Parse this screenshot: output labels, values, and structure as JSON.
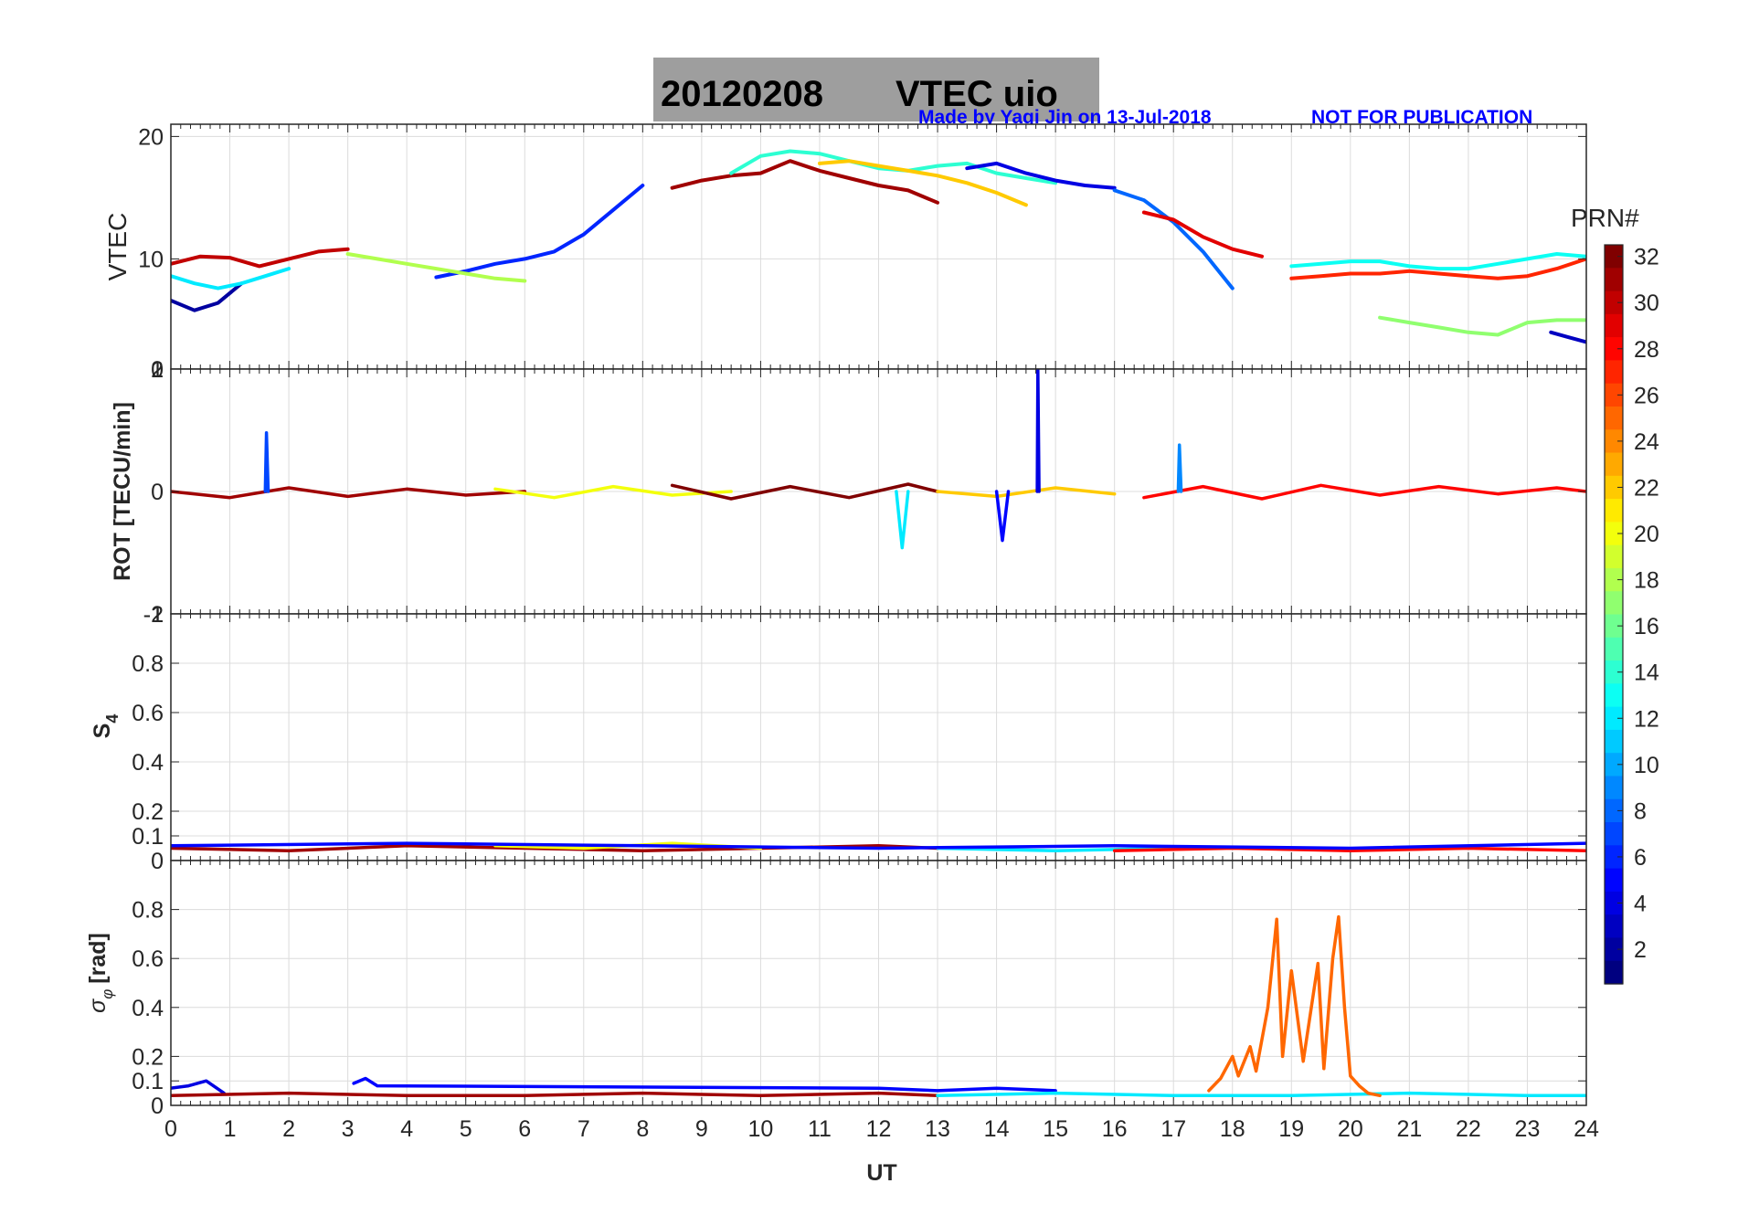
{
  "figure": {
    "title_date": "20120208",
    "title_label": "VTEC  uio",
    "credit": "Made by Yaqi Jin on 13-Jul-2018",
    "notice": "NOT FOR PUBLICATION",
    "colors": {
      "title_box": "#9e9e9e",
      "credit": "#0000ff",
      "axis": "#262626",
      "grid": "#dcdcdc",
      "sigma_highlight": "#ff4000"
    }
  },
  "colorbar": {
    "label": "PRN#",
    "min": 1,
    "max": 32,
    "ticks": [
      2,
      4,
      6,
      8,
      10,
      12,
      14,
      16,
      18,
      20,
      22,
      24,
      26,
      28,
      30,
      32
    ],
    "colormap": "jet",
    "levels": 32
  },
  "chart_data": [
    {
      "type": "line",
      "panel": "vtec",
      "ylabel": "VTEC",
      "xlim": [
        0,
        24
      ],
      "ylim": [
        1,
        21
      ],
      "yticks": [
        10,
        20
      ],
      "ytick_labels": [
        "10",
        "20"
      ],
      "extra_tick_label": "0",
      "xlabel": "",
      "series": [
        {
          "prn": 2,
          "name": "PRN 2",
          "x": [
            0.0,
            0.4,
            0.8,
            1.2
          ],
          "y": [
            6.6,
            5.8,
            6.4,
            8.0
          ]
        },
        {
          "prn": 6,
          "name": "PRN 6",
          "x": [
            4.5,
            5.0,
            5.5,
            6.0,
            6.5,
            7.0,
            7.5,
            8.0
          ],
          "y": [
            8.5,
            9.0,
            9.6,
            10.0,
            10.6,
            12.0,
            14.0,
            16.0
          ]
        },
        {
          "prn": 30,
          "name": "PRN 30",
          "x": [
            0.0,
            0.5,
            1.0,
            1.5,
            2.0,
            2.5,
            3.0
          ],
          "y": [
            9.6,
            10.2,
            10.1,
            9.4,
            10.0,
            10.6,
            10.8
          ]
        },
        {
          "prn": 18,
          "name": "PRN 18",
          "x": [
            3.0,
            3.5,
            4.0,
            4.5,
            5.0,
            5.5,
            6.0
          ],
          "y": [
            10.4,
            10.0,
            9.6,
            9.2,
            8.8,
            8.4,
            8.2
          ]
        },
        {
          "prn": 12,
          "name": "PRN 12",
          "x": [
            0.0,
            0.4,
            0.8,
            1.2,
            1.6,
            2.0
          ],
          "y": [
            8.6,
            8.0,
            7.6,
            8.0,
            8.6,
            9.2
          ]
        },
        {
          "prn": 31,
          "name": "PRN 31",
          "x": [
            8.5,
            9.0,
            9.5,
            10.0,
            10.5,
            11.0,
            11.5,
            12.0,
            12.5,
            13.0
          ],
          "y": [
            15.8,
            16.4,
            16.8,
            17.0,
            18.0,
            17.2,
            16.6,
            16.0,
            15.6,
            14.6
          ]
        },
        {
          "prn": 14,
          "name": "PRN 14",
          "x": [
            9.5,
            10.0,
            10.5,
            11.0,
            11.5,
            12.0,
            12.5,
            13.0,
            13.5,
            14.0,
            14.5,
            15.0
          ],
          "y": [
            17.0,
            18.4,
            18.8,
            18.6,
            18.0,
            17.4,
            17.2,
            17.6,
            17.8,
            17.0,
            16.6,
            16.2
          ]
        },
        {
          "prn": 22,
          "name": "PRN 22",
          "x": [
            11.0,
            11.5,
            12.0,
            12.5,
            13.0,
            13.5,
            14.0,
            14.5
          ],
          "y": [
            17.8,
            18.0,
            17.6,
            17.2,
            16.8,
            16.2,
            15.4,
            14.4
          ]
        },
        {
          "prn": 4,
          "name": "PRN 4",
          "x": [
            13.5,
            14.0,
            14.5,
            15.0,
            15.5,
            16.0
          ],
          "y": [
            17.4,
            17.8,
            17.0,
            16.4,
            16.0,
            15.8
          ]
        },
        {
          "prn": 8,
          "name": "PRN 8",
          "x": [
            16.0,
            16.5,
            17.0,
            17.5,
            18.0
          ],
          "y": [
            15.6,
            14.8,
            13.0,
            10.6,
            7.6
          ]
        },
        {
          "prn": 29,
          "name": "PRN 29",
          "x": [
            16.5,
            17.0,
            17.5,
            18.0,
            18.5
          ],
          "y": [
            13.8,
            13.2,
            11.8,
            10.8,
            10.2
          ]
        },
        {
          "prn": 27,
          "name": "PRN 27",
          "x": [
            19.0,
            19.5,
            20.0,
            20.5,
            21.0,
            21.5,
            22.0,
            22.5,
            23.0,
            23.5,
            24.0
          ],
          "y": [
            8.4,
            8.6,
            8.8,
            8.8,
            9.0,
            8.8,
            8.6,
            8.4,
            8.6,
            9.2,
            10.0
          ]
        },
        {
          "prn": 13,
          "name": "PRN 13",
          "x": [
            19.0,
            19.5,
            20.0,
            20.5,
            21.0,
            21.5,
            22.0,
            22.5,
            23.0,
            23.5,
            24.0
          ],
          "y": [
            9.4,
            9.6,
            9.8,
            9.8,
            9.4,
            9.2,
            9.2,
            9.6,
            10.0,
            10.4,
            10.2
          ]
        },
        {
          "prn": 17,
          "name": "PRN 17",
          "x": [
            20.5,
            21.0,
            21.5,
            22.0,
            22.5,
            23.0,
            23.5,
            24.0
          ],
          "y": [
            5.2,
            4.8,
            4.4,
            4.0,
            3.8,
            4.8,
            5.0,
            5.0
          ]
        },
        {
          "prn": 3,
          "name": "PRN 3",
          "x": [
            23.4,
            23.7,
            24.0
          ],
          "y": [
            4.0,
            3.6,
            3.2
          ]
        }
      ]
    },
    {
      "type": "line",
      "panel": "rot",
      "ylabel": "ROT [TECU/min]",
      "xlim": [
        0,
        24
      ],
      "ylim": [
        -1,
        1
      ],
      "yticks": [
        -1,
        0,
        1
      ],
      "ytick_labels": [
        "-1",
        "0",
        "1"
      ],
      "extra_tick_labels": [
        "2",
        "-2"
      ],
      "xlabel": "",
      "series": [
        {
          "prn": 31,
          "name": "PRN 31",
          "x": [
            0.0,
            1.0,
            2.0,
            3.0,
            4.0,
            5.0,
            6.0
          ],
          "y": [
            0.0,
            -0.05,
            0.03,
            -0.04,
            0.02,
            -0.03,
            0.0
          ]
        },
        {
          "prn": 20,
          "name": "PRN 20",
          "x": [
            5.5,
            6.5,
            7.5,
            8.5,
            9.5
          ],
          "y": [
            0.02,
            -0.05,
            0.04,
            -0.03,
            0.0
          ]
        },
        {
          "prn": 32,
          "name": "PRN 32",
          "x": [
            8.5,
            9.5,
            10.5,
            11.5,
            12.5,
            13.0
          ],
          "y": [
            0.05,
            -0.06,
            0.04,
            -0.05,
            0.06,
            0.0
          ]
        },
        {
          "prn": 22,
          "name": "PRN 22",
          "x": [
            13.0,
            14.0,
            15.0,
            16.0
          ],
          "y": [
            0.0,
            -0.04,
            0.03,
            -0.02
          ]
        },
        {
          "prn": 28,
          "name": "PRN 28",
          "x": [
            16.5,
            17.5,
            18.5,
            19.5,
            20.5,
            21.5,
            22.5,
            23.5,
            24.0
          ],
          "y": [
            -0.05,
            0.04,
            -0.06,
            0.05,
            -0.03,
            0.04,
            -0.02,
            0.03,
            0.0
          ]
        },
        {
          "prn": 4,
          "name": "PRN 4 spike",
          "x": [
            14.69,
            14.7,
            14.72
          ],
          "y": [
            0.0,
            1.0,
            0.0
          ]
        },
        {
          "prn": 7,
          "name": "PRN 7 spike",
          "x": [
            1.6,
            1.62,
            1.65
          ],
          "y": [
            0.0,
            0.48,
            0.0
          ]
        },
        {
          "prn": 9,
          "name": "PRN 9 spike",
          "x": [
            17.08,
            17.1,
            17.13
          ],
          "y": [
            0.0,
            0.38,
            0.0
          ]
        },
        {
          "prn": 12,
          "name": "PRN 12 dip",
          "x": [
            12.3,
            12.4,
            12.5
          ],
          "y": [
            0.0,
            -0.46,
            0.0
          ]
        },
        {
          "prn": 5,
          "name": "PRN 5 dip",
          "x": [
            14.0,
            14.1,
            14.2
          ],
          "y": [
            0.0,
            -0.4,
            0.0
          ]
        }
      ]
    },
    {
      "type": "line",
      "panel": "s4",
      "ylabel": "S4",
      "ylabel_main": "S",
      "ylabel_sub": "4",
      "xlim": [
        0,
        24
      ],
      "ylim": [
        0,
        1
      ],
      "yticks": [
        0,
        0.1,
        0.2,
        0.4,
        0.6,
        0.8,
        1
      ],
      "ytick_labels": [
        "0",
        "0.1",
        "0.2",
        "0.4",
        "0.6",
        "0.8",
        "1"
      ],
      "xlabel": "",
      "series": [
        {
          "prn": 31,
          "name": "PRN 31",
          "x": [
            0,
            2,
            4,
            6,
            8,
            10,
            12,
            13
          ],
          "y": [
            0.05,
            0.04,
            0.06,
            0.05,
            0.04,
            0.05,
            0.06,
            0.05
          ]
        },
        {
          "prn": 20,
          "name": "PRN 20",
          "x": [
            5.5,
            7,
            8.5,
            10
          ],
          "y": [
            0.06,
            0.05,
            0.07,
            0.05
          ]
        },
        {
          "prn": 12,
          "name": "PRN 12",
          "x": [
            13,
            15,
            17
          ],
          "y": [
            0.05,
            0.04,
            0.05
          ]
        },
        {
          "prn": 28,
          "name": "PRN 28",
          "x": [
            16,
            18,
            20,
            22,
            24
          ],
          "y": [
            0.04,
            0.05,
            0.04,
            0.05,
            0.04
          ]
        },
        {
          "prn": 5,
          "name": "PRN 5",
          "x": [
            0,
            4,
            8,
            12,
            16,
            20,
            24
          ],
          "y": [
            0.06,
            0.07,
            0.06,
            0.05,
            0.06,
            0.05,
            0.07
          ]
        }
      ]
    },
    {
      "type": "line",
      "panel": "sigma_phi",
      "ylabel": "σφ [rad]",
      "ylabel_main": "σ",
      "ylabel_sub": "φ",
      "ylabel_unit": "[rad]",
      "xlabel": "UT",
      "xlim": [
        0,
        24
      ],
      "ylim": [
        0,
        1
      ],
      "xticks": [
        0,
        1,
        2,
        3,
        4,
        5,
        6,
        7,
        8,
        9,
        10,
        11,
        12,
        13,
        14,
        15,
        16,
        17,
        18,
        19,
        20,
        21,
        22,
        23,
        24
      ],
      "xtick_labels": [
        "0",
        "1",
        "2",
        "3",
        "4",
        "5",
        "6",
        "7",
        "8",
        "9",
        "10",
        "11",
        "12",
        "13",
        "14",
        "15",
        "16",
        "17",
        "18",
        "19",
        "20",
        "21",
        "22",
        "23",
        "24"
      ],
      "yticks": [
        0,
        0.1,
        0.2,
        0.4,
        0.6,
        0.8
      ],
      "ytick_labels": [
        "0",
        "0.1",
        "0.2",
        "0.4",
        "0.6",
        "0.8"
      ],
      "series": [
        {
          "prn": 4,
          "name": "PRN 4",
          "x": [
            0.0,
            0.3,
            0.6,
            0.9
          ],
          "y": [
            0.07,
            0.08,
            0.1,
            0.05
          ]
        },
        {
          "prn": 31,
          "name": "PRN 31",
          "x": [
            0,
            2,
            4,
            6,
            8,
            10,
            12,
            13
          ],
          "y": [
            0.04,
            0.05,
            0.04,
            0.04,
            0.05,
            0.04,
            0.05,
            0.04
          ]
        },
        {
          "prn": 5,
          "name": "PRN 5",
          "x": [
            3.1,
            3.3,
            3.5,
            12,
            13,
            14,
            15
          ],
          "y": [
            0.09,
            0.11,
            0.08,
            0.07,
            0.06,
            0.07,
            0.06
          ]
        },
        {
          "prn": 12,
          "name": "PRN 12",
          "x": [
            13,
            15,
            17,
            19,
            21,
            23,
            24
          ],
          "y": [
            0.04,
            0.05,
            0.04,
            0.04,
            0.05,
            0.04,
            0.04
          ]
        },
        {
          "prn": 25,
          "name": "PRN 25",
          "x": [
            17.6,
            17.8,
            18.0,
            18.1,
            18.3,
            18.4,
            18.6,
            18.75,
            18.85,
            19.0,
            19.2,
            19.45,
            19.55,
            19.7,
            19.8,
            19.9,
            20.0,
            20.15,
            20.3,
            20.5
          ],
          "y": [
            0.06,
            0.11,
            0.2,
            0.12,
            0.24,
            0.14,
            0.4,
            0.76,
            0.2,
            0.55,
            0.18,
            0.58,
            0.15,
            0.6,
            0.77,
            0.4,
            0.12,
            0.08,
            0.05,
            0.04
          ]
        }
      ]
    }
  ]
}
